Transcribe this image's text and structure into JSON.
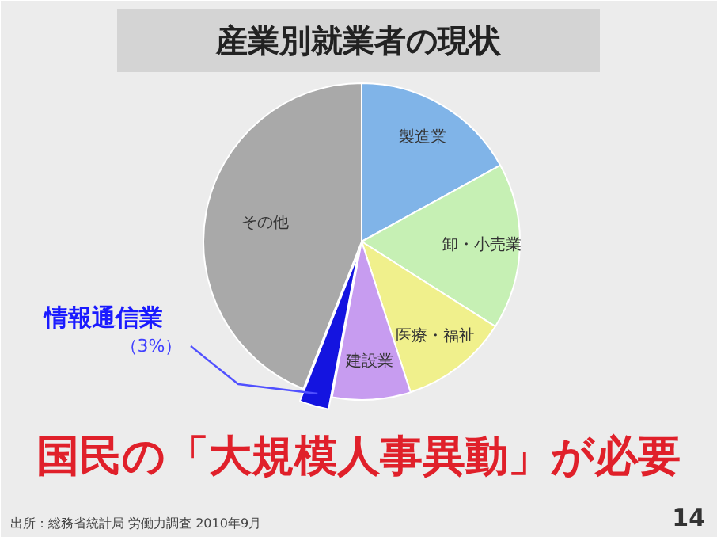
{
  "chart_data": {
    "type": "pie",
    "title": "産業別就業者の現状",
    "categories": [
      "製造業",
      "卸・小売業",
      "医療・福祉",
      "建設業",
      "情報通信業",
      "その他"
    ],
    "values": [
      17,
      17,
      11,
      8,
      3,
      44
    ],
    "colors": [
      "#80b4e8",
      "#c6f0b4",
      "#f0f08c",
      "#c79cf0",
      "#1414e0",
      "#a9a9a9"
    ],
    "value_labels": [
      null,
      null,
      null,
      null,
      "（3%）",
      null
    ],
    "annotations": [
      "国民の「大規模人事異動」が必要",
      "出所：総務省統計局 労働力調査 2010年9月",
      "14"
    ]
  }
}
